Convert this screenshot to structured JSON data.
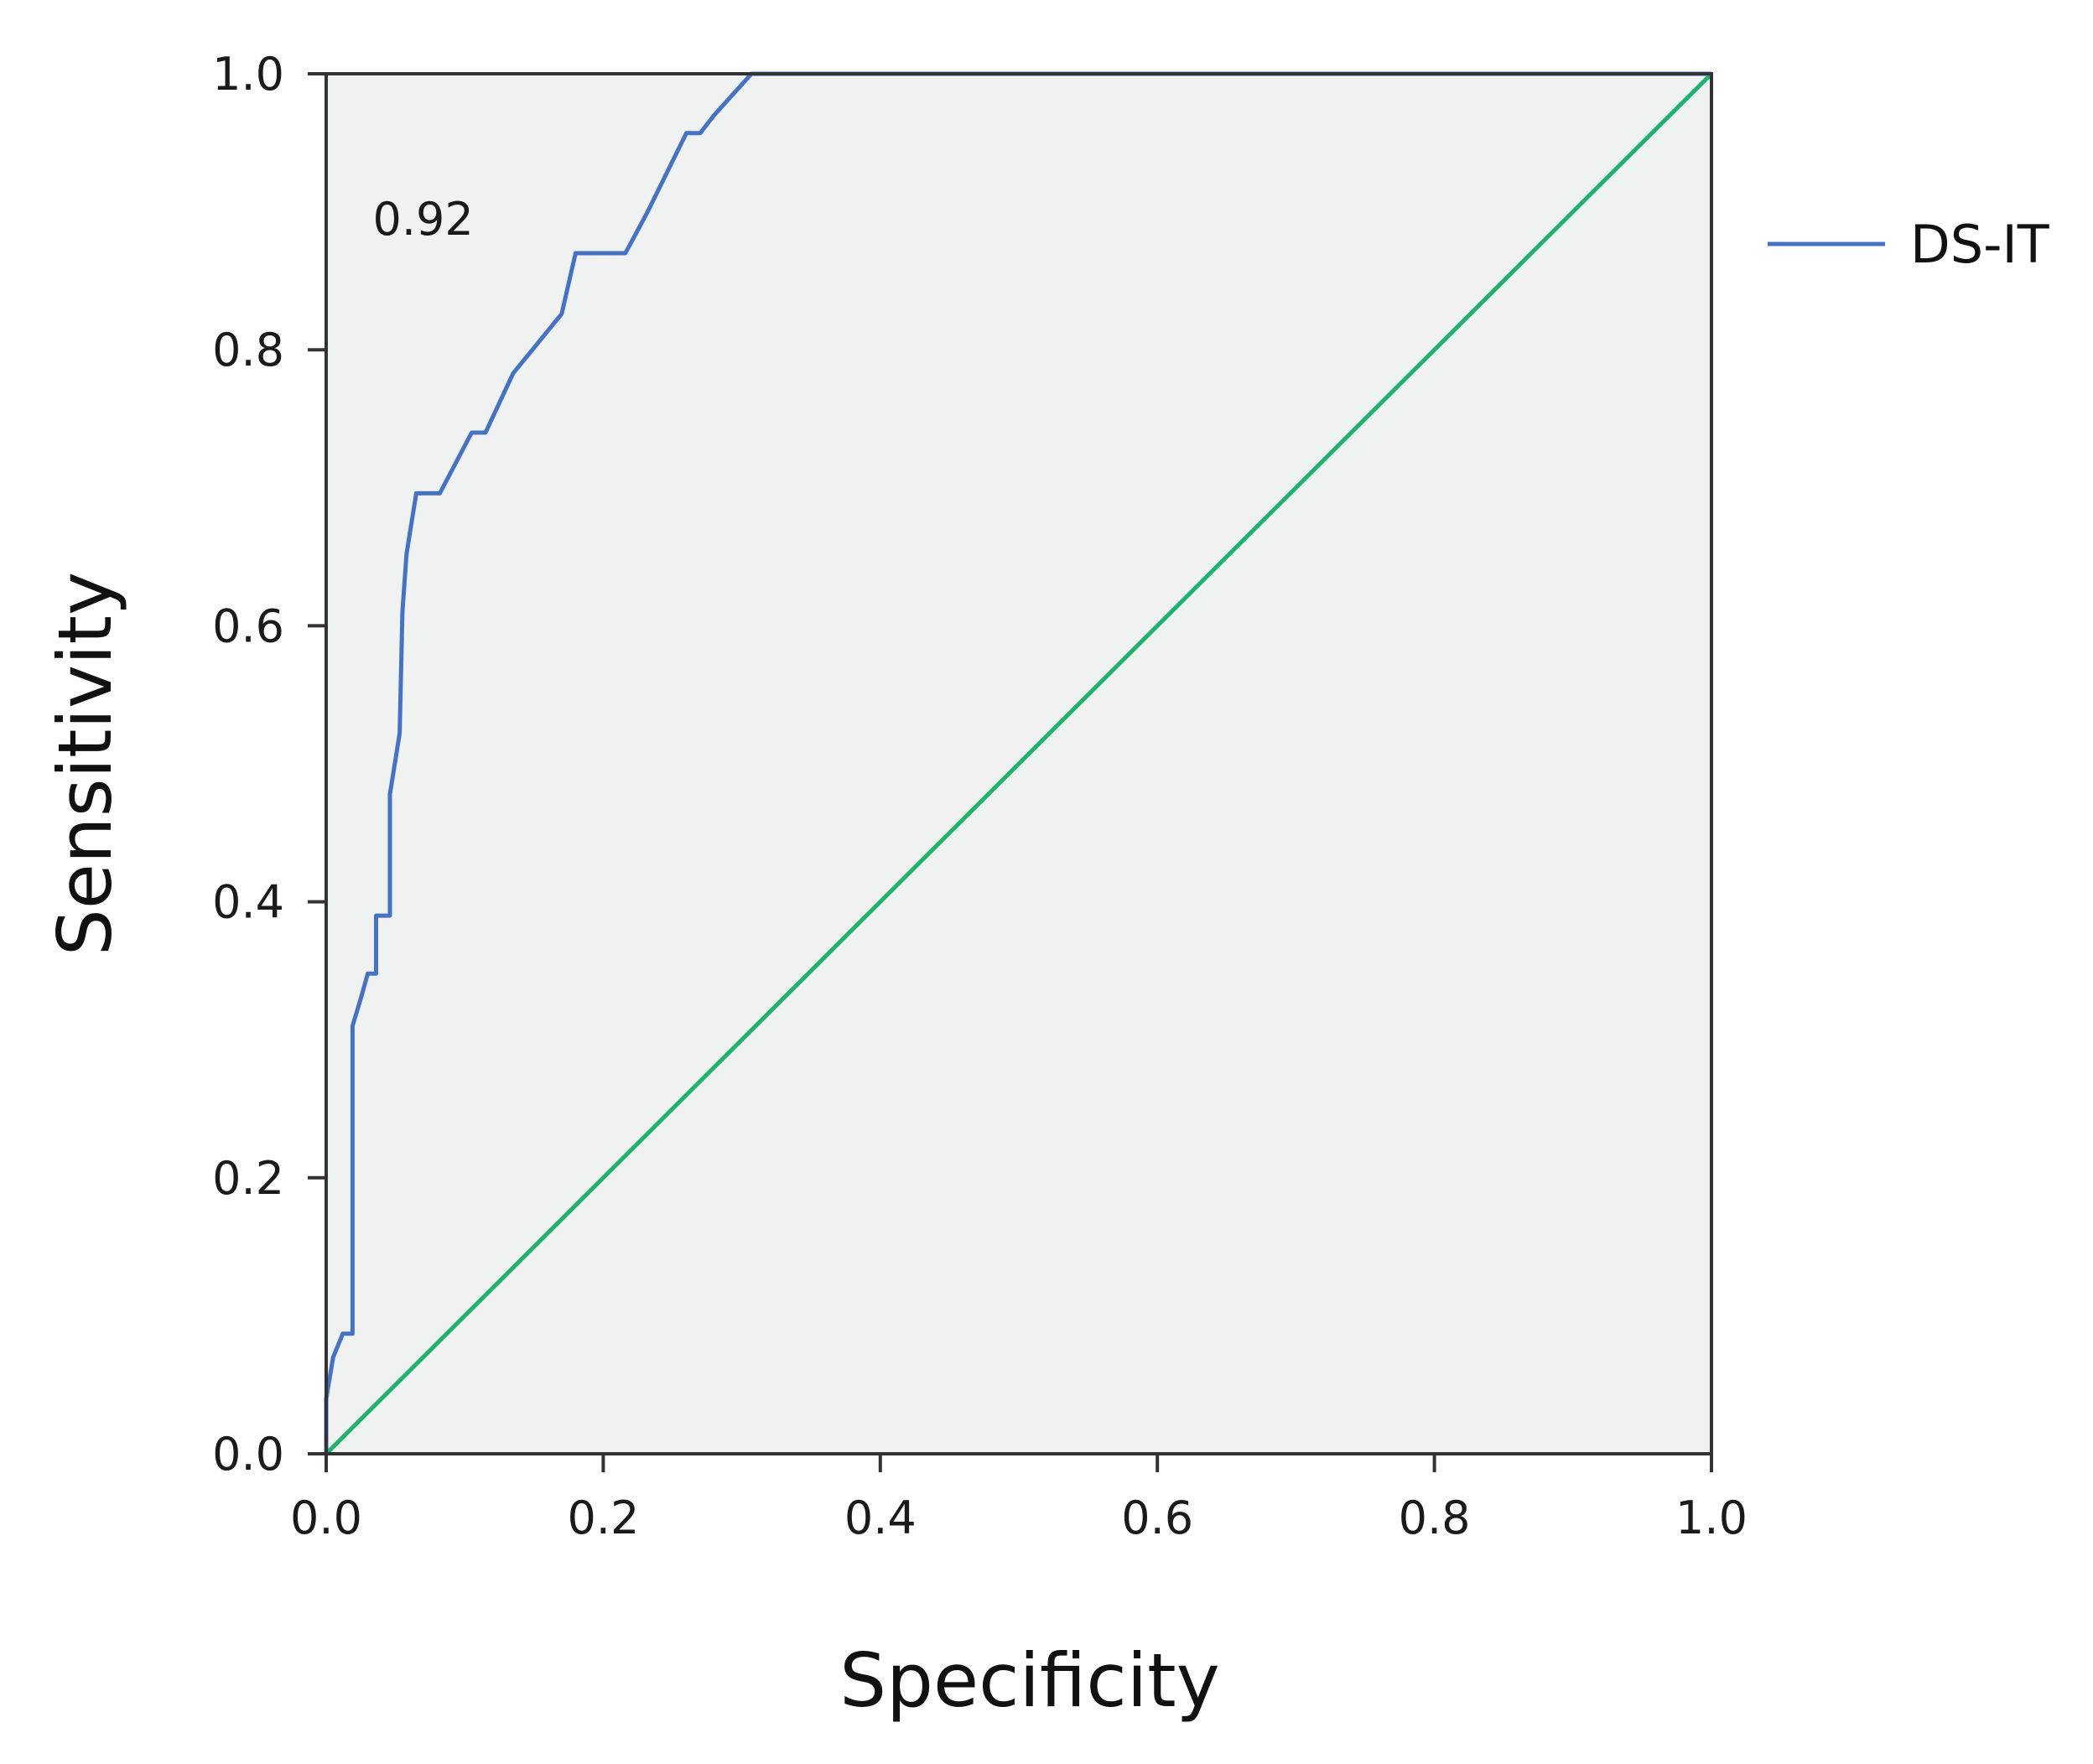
{
  "chart_data": {
    "type": "line",
    "title": "",
    "xlabel": "Specificity",
    "ylabel": "Sensitivity",
    "xlim": [
      0,
      1
    ],
    "ylim": [
      0,
      1
    ],
    "xticks": [
      "0.0",
      "0.2",
      "0.4",
      "0.6",
      "0.8",
      "1.0"
    ],
    "yticks": [
      "0.0",
      "0.2",
      "0.4",
      "0.6",
      "0.8",
      "1.0"
    ],
    "grid": false,
    "legend_position": "right",
    "annotation": {
      "text": "0.92",
      "x": 0.07,
      "y": 0.895
    },
    "series": [
      {
        "name": "DS-IT",
        "color": "#4472c4",
        "x": [
          0,
          0,
          0.005,
          0.012,
          0.019,
          0.019,
          0.025,
          0.03,
          0.036,
          0.036,
          0.046,
          0.046,
          0.053,
          0.055,
          0.058,
          0.065,
          0.082,
          0.105,
          0.115,
          0.135,
          0.17,
          0.18,
          0.216,
          0.232,
          0.26,
          0.27,
          0.28,
          0.307,
          1.0
        ],
        "y": [
          0,
          0.04,
          0.07,
          0.087,
          0.087,
          0.31,
          0.33,
          0.348,
          0.348,
          0.39,
          0.39,
          0.478,
          0.522,
          0.61,
          0.652,
          0.696,
          0.696,
          0.74,
          0.74,
          0.783,
          0.826,
          0.87,
          0.87,
          0.9,
          0.957,
          0.957,
          0.97,
          1.0,
          1.0
        ]
      },
      {
        "name": "",
        "color": "#1db36b",
        "x": [
          0,
          1
        ],
        "y": [
          0,
          1
        ]
      }
    ]
  }
}
